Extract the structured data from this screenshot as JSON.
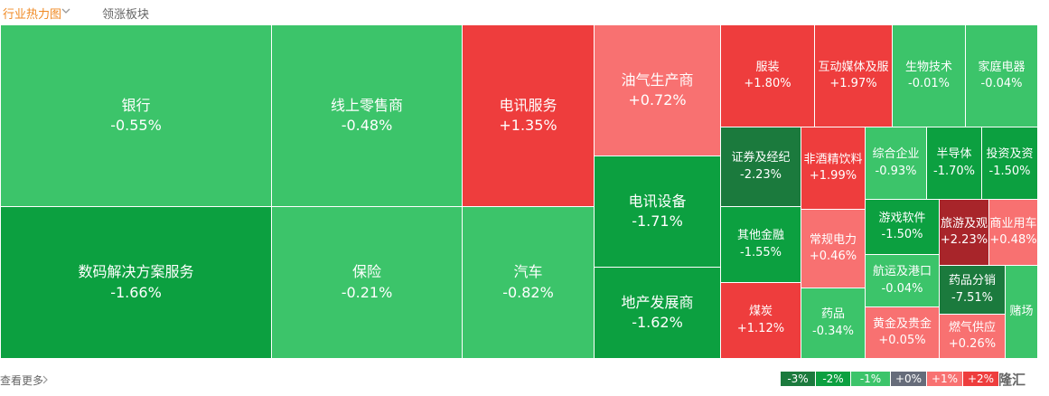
{
  "tabs": [
    "行业热力图",
    "领涨板块"
  ],
  "tiles": [
    {
      "name": "银行",
      "change": "-0.55%"
    },
    {
      "name": "数码解决方案服务",
      "change": "-1.66%"
    },
    {
      "name": "线上零售商",
      "change": "-0.48%"
    },
    {
      "name": "保险",
      "change": "-0.21%"
    },
    {
      "name": "电讯服务",
      "change": "+1.35%"
    },
    {
      "name": "汽车",
      "change": "-0.82%"
    },
    {
      "name": "油气生产商",
      "change": "+0.72%"
    },
    {
      "name": "电讯设备",
      "change": "-1.71%"
    },
    {
      "name": "地产发展商",
      "change": "-1.62%"
    },
    {
      "name": "服装",
      "change": "+1.80%"
    },
    {
      "name": "互动媒体及服",
      "change": "+1.97%"
    },
    {
      "name": "生物技术",
      "change": "-0.01%"
    },
    {
      "name": "家庭电器",
      "change": "-0.04%"
    },
    {
      "name": "证券及经纪",
      "change": "-2.23%"
    },
    {
      "name": "其他金融",
      "change": "-1.55%"
    },
    {
      "name": "煤炭",
      "change": "+1.12%"
    },
    {
      "name": "非酒精饮料",
      "change": "+1.99%"
    },
    {
      "name": "常规电力",
      "change": "+0.46%"
    },
    {
      "name": "药品",
      "change": "-0.34%"
    },
    {
      "name": "综合企业",
      "change": "-0.93%"
    },
    {
      "name": "半导体",
      "change": "-1.70%"
    },
    {
      "name": "投资及资",
      "change": "-1.50%"
    },
    {
      "name": "游戏软件",
      "change": "-1.50%"
    },
    {
      "name": "航运及港口",
      "change": "-0.04%"
    },
    {
      "name": "黄金及贵金",
      "change": "+0.05%"
    },
    {
      "name": "旅游及观",
      "change": "+2.23%"
    },
    {
      "name": "商业用车",
      "change": "+0.48%"
    },
    {
      "name": "药品分销",
      "change": "-7.51%"
    },
    {
      "name": "燃气供应",
      "change": "+0.26%"
    },
    {
      "name": "赌场"
    }
  ],
  "more": "查看更多",
  "legend": [
    "-3%",
    "-2%",
    "-1%",
    "+0%",
    "+1%",
    "+2%"
  ],
  "logo": "格隆汇"
}
